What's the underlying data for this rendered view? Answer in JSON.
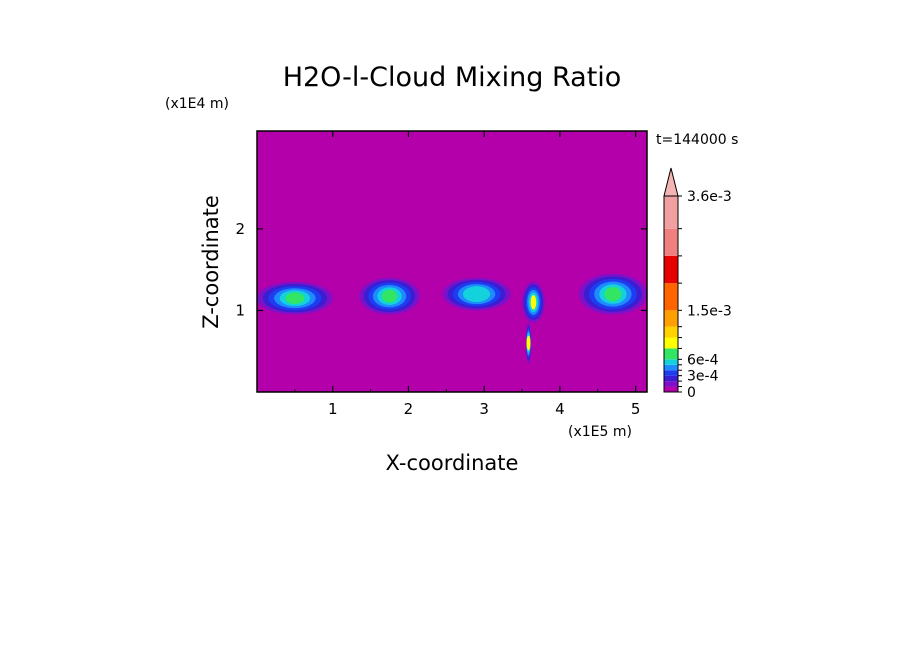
{
  "chart_data": {
    "type": "heatmap",
    "title": "H2O-l-Cloud Mixing Ratio",
    "xlabel": "X-coordinate",
    "ylabel": "Z-coordinate",
    "x_scale_label": "(x1E5 m)",
    "y_scale_label": "(x1E4 m)",
    "time_label": "t=144000 s",
    "xlim": [
      0,
      5.15
    ],
    "ylim": [
      0,
      3.2
    ],
    "x_ticks": [
      1,
      2,
      3,
      4,
      5
    ],
    "y_ticks": [
      1,
      2
    ],
    "background_color": "#b400aa",
    "colorbar": {
      "levels": [
        0,
        0.0001,
        0.0002,
        0.0003,
        0.0004,
        0.0005,
        0.0006,
        0.0008,
        0.001,
        0.0012,
        0.0015,
        0.002,
        0.0025,
        0.003,
        0.0036
      ],
      "colors": [
        "#b400aa",
        "#7d10c8",
        "#3a1ed2",
        "#1e3cf0",
        "#1e8cff",
        "#14d2dc",
        "#32e664",
        "#ffff00",
        "#ffd200",
        "#ffa000",
        "#ff6400",
        "#e60000",
        "#f08080",
        "#f0a0a0"
      ],
      "extend_color": "#f5b4b4",
      "labeled_levels": [
        {
          "value": 0.0036,
          "text": "3.6e-3"
        },
        {
          "value": 0.0015,
          "text": "1.5e-3"
        },
        {
          "value": 0.0006,
          "text": "6e-4"
        },
        {
          "value": 0.0003,
          "text": "3e-4"
        },
        {
          "value": 0,
          "text": "0"
        }
      ]
    },
    "cloud_regions": [
      {
        "x": [
          0.0,
          1.0
        ],
        "z": [
          0.95,
          1.35
        ],
        "peak": 0.0007
      },
      {
        "x": [
          1.35,
          2.15
        ],
        "z": [
          0.95,
          1.4
        ],
        "peak": 0.0007
      },
      {
        "x": [
          2.45,
          3.35
        ],
        "z": [
          1.0,
          1.4
        ],
        "peak": 0.0006
      },
      {
        "x": [
          3.5,
          3.8
        ],
        "z": [
          0.85,
          1.35
        ],
        "peak": 0.0009
      },
      {
        "x": [
          3.55,
          3.62
        ],
        "z": [
          0.35,
          0.85
        ],
        "peak": 0.0009
      },
      {
        "x": [
          4.25,
          5.15
        ],
        "z": [
          0.95,
          1.45
        ],
        "peak": 0.0008
      }
    ]
  }
}
